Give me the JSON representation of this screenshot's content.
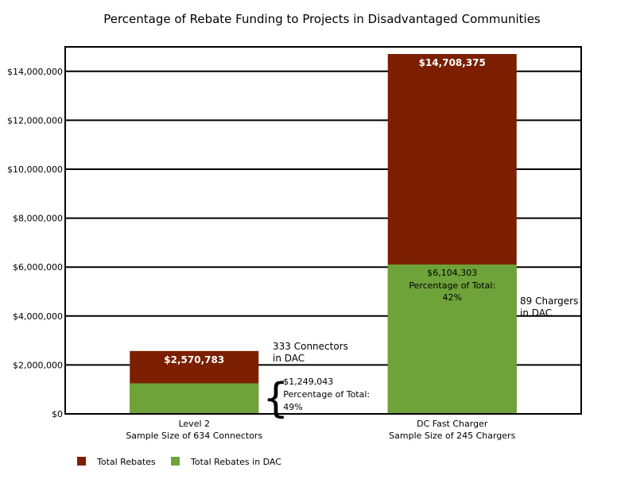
{
  "chart_data": {
    "type": "bar",
    "stacked": "overlay",
    "title": "Percentage of Rebate Funding to Projects in Disadvantaged Communities",
    "categories": [
      {
        "line1": "Level 2",
        "line2": "Sample Size of 634 Connectors"
      },
      {
        "line1": "DC Fast Charger",
        "line2": "Sample Size of 245 Chargers"
      }
    ],
    "series": [
      {
        "name": "Total Rebates",
        "color": "#7b1f00",
        "values": [
          2570783,
          14708375
        ]
      },
      {
        "name": "Total Rebates in DAC",
        "color": "#6ea33a",
        "values": [
          1249043,
          6104303
        ]
      }
    ],
    "ylim": [
      0,
      15000000
    ],
    "yticks": [
      {
        "value": 0,
        "label": "$0"
      },
      {
        "value": 2000000,
        "label": "$2,000,000"
      },
      {
        "value": 4000000,
        "label": "$4,000,000"
      },
      {
        "value": 6000000,
        "label": "$6,000,000"
      },
      {
        "value": 8000000,
        "label": "$8,000,000"
      },
      {
        "value": 10000000,
        "label": "$10,000,000"
      },
      {
        "value": 12000000,
        "label": "$12,000,000"
      },
      {
        "value": 14000000,
        "label": "$14,000,000"
      }
    ],
    "grid": true,
    "legend_position": "bottom-left",
    "total_labels": [
      "$2,570,783",
      "$14,708,375"
    ],
    "dac_annotations": [
      {
        "amount": "$1,249,043",
        "pct_label": "Percentage of Total:",
        "pct": "49%"
      },
      {
        "amount": "$6,104,303",
        "pct_label": "Percentage of Total:",
        "pct": "42%"
      }
    ],
    "count_annotations": [
      {
        "line1": "333 Connectors",
        "line2": "in DAC"
      },
      {
        "line1": "89 Chargers",
        "line2": "in DAC"
      }
    ],
    "brace": "{"
  }
}
